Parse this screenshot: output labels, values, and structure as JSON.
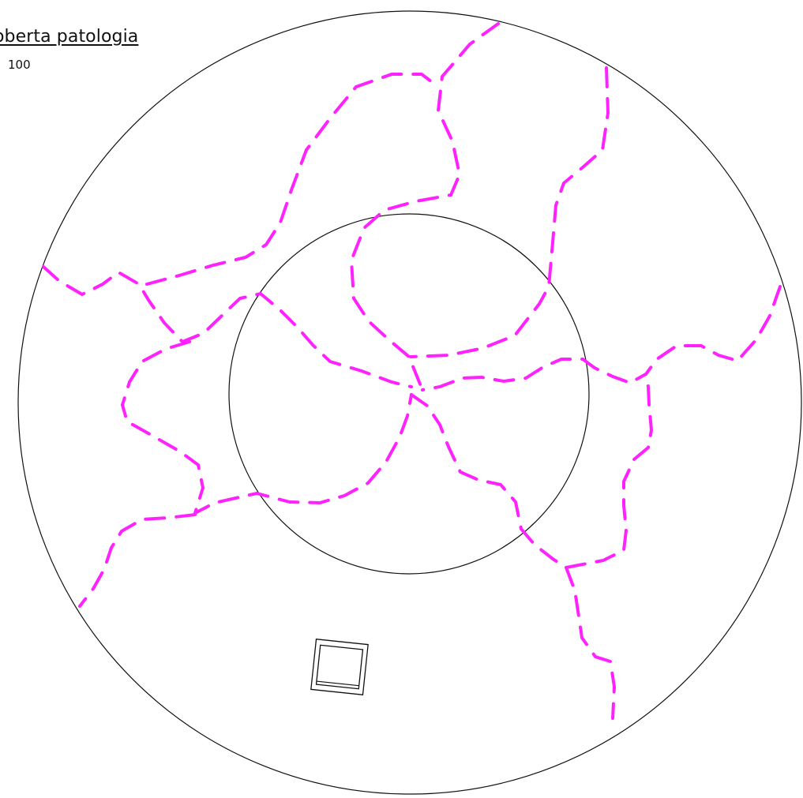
{
  "title": "oberta patologia",
  "scale": "100",
  "colors": {
    "crack": "#ff22ff",
    "outline": "#111111",
    "background": "#ffffff"
  },
  "legend": {
    "crack_line": "dashed magenta line"
  },
  "icons": {
    "square_fixture": "square-drain-icon"
  }
}
